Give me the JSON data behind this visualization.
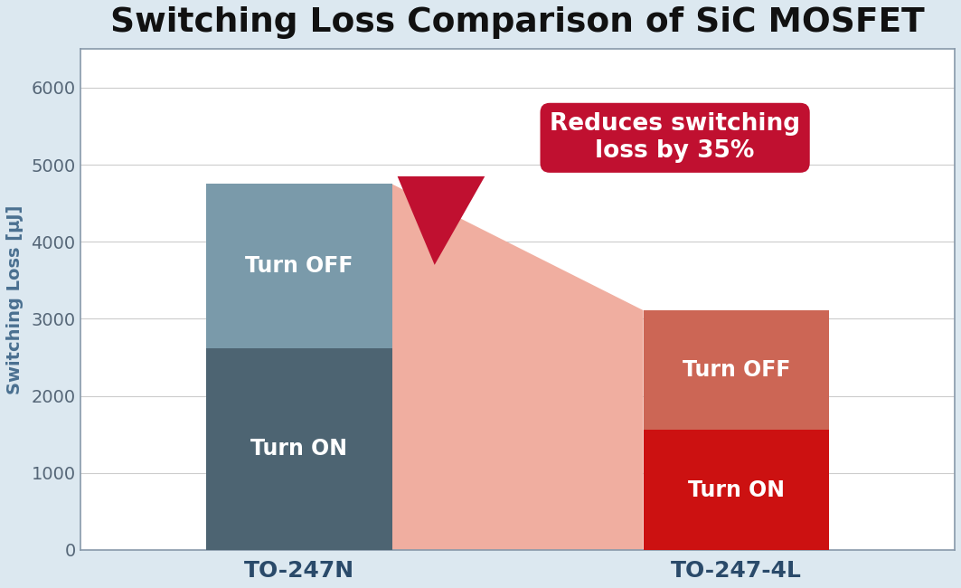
{
  "title": "Switching Loss Comparison of SiC MOSFET",
  "ylabel": "Switching Loss [μJ]",
  "categories": [
    "TO-247N",
    "TO-247-4L"
  ],
  "turn_on_values": [
    2620,
    1560
  ],
  "turn_off_values": [
    2130,
    1550
  ],
  "bar_totals": [
    4750,
    3110
  ],
  "bar1_on_color": "#4d6472",
  "bar1_off_color": "#7a9aaa",
  "bar2_on_color": "#cc1111",
  "bar2_off_color": "#cc6655",
  "connector_color": "#f0aea0",
  "annotation_bg_color": "#c01030",
  "annotation_text": "Reduces switching\nloss by 35%",
  "annotation_text_color": "#ffffff",
  "background_color": "#dce8f0",
  "plot_bg_color": "#ffffff",
  "axis_border_color": "#8899aa",
  "ylim": [
    0,
    6500
  ],
  "yticks": [
    0,
    1000,
    2000,
    3000,
    4000,
    5000,
    6000
  ],
  "title_fontsize": 27,
  "label_fontsize": 14,
  "tick_fontsize": 14,
  "bar_label_fontsize": 17,
  "cat_fontsize": 18
}
